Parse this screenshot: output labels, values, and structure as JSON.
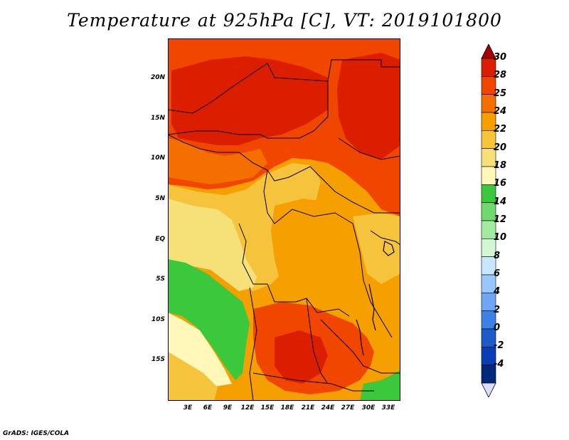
{
  "title": "Temperature at 925hPa [C], VT: 2019101800",
  "credit": "GrADS: IGES/COLA",
  "map": {
    "lat_labels": [
      "20N",
      "15N",
      "10N",
      "5N",
      "EQ",
      "5S",
      "10S",
      "15S"
    ],
    "lon_labels": [
      "3E",
      "6E",
      "9E",
      "12E",
      "15E",
      "18E",
      "21E",
      "24E",
      "27E",
      "30E",
      "33E"
    ]
  },
  "colorbar": {
    "labels": [
      "30",
      "28",
      "25",
      "24",
      "22",
      "20",
      "18",
      "16",
      "14",
      "12",
      "10",
      "8",
      "6",
      "4",
      "2",
      "0",
      "-2",
      "-4"
    ],
    "colors": [
      "#a50000",
      "#dc1e00",
      "#f04600",
      "#f56e00",
      "#f5a000",
      "#f5c33c",
      "#f5e178",
      "#fff8b8",
      "#3cc83c",
      "#6ed96e",
      "#a0eba0",
      "#d2f5d2",
      "#c8e6ff",
      "#96c8ff",
      "#6ea5f5",
      "#3c82e6",
      "#1e5ac8",
      "#0a3cb4",
      "#002878",
      "#dcdcff"
    ]
  }
}
